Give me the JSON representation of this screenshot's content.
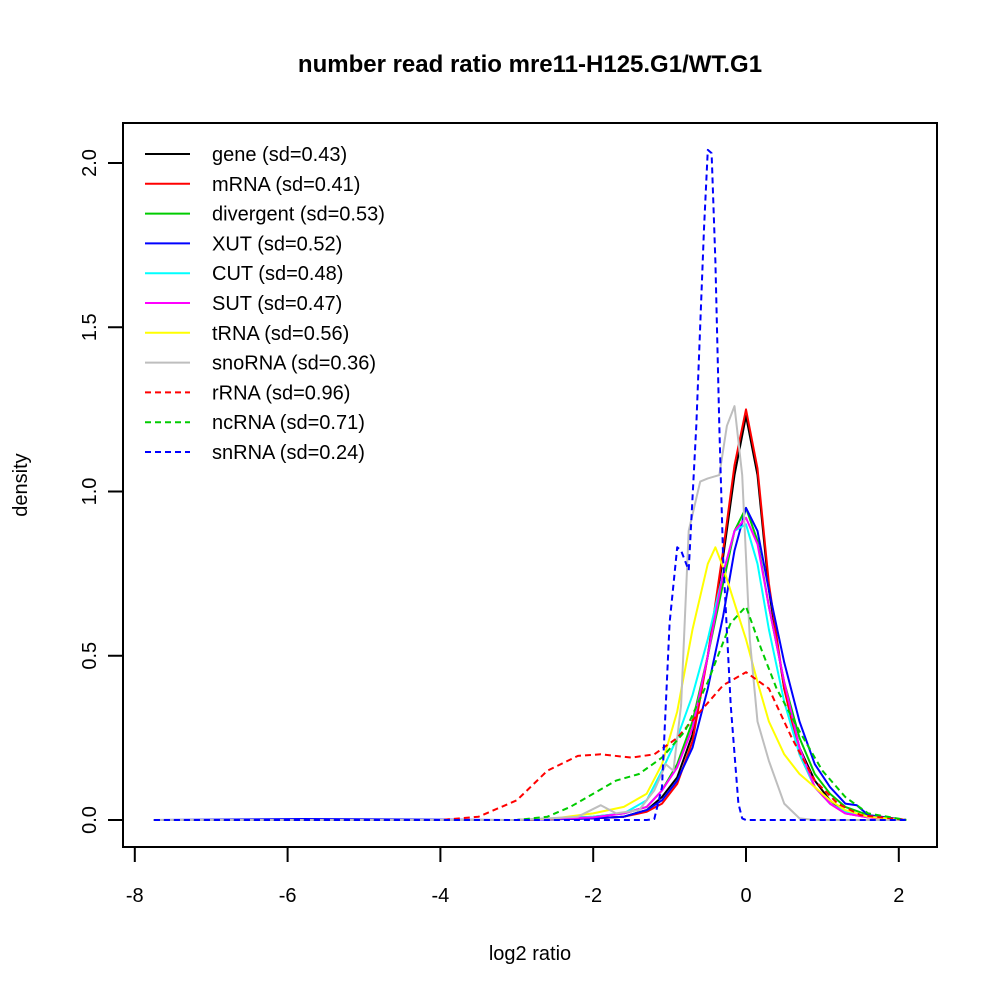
{
  "chart_data": {
    "type": "line",
    "title": "number read ratio mre11-H125.G1/WT.G1",
    "xlabel": "log2 ratio",
    "ylabel": "density",
    "xlim": [
      -8,
      2.2
    ],
    "ylim": [
      0,
      2.05
    ],
    "x_ticks": [
      -8,
      -6,
      -4,
      -2,
      0,
      2
    ],
    "x_tick_labels": [
      "-8",
      "-6",
      "-4",
      "-2",
      "0",
      "2"
    ],
    "y_ticks": [
      0,
      0.5,
      1.0,
      1.5,
      2.0
    ],
    "y_tick_labels": [
      "0.0",
      "0.5",
      "1.0",
      "1.5",
      "2.0"
    ],
    "grid": false,
    "legend_position": "top-left",
    "series": [
      {
        "name": "gene (sd=0.43)",
        "color": "#000000",
        "dash": "solid",
        "x": [
          -7.75,
          -3,
          -2,
          -1.6,
          -1.3,
          -1.1,
          -0.9,
          -0.7,
          -0.5,
          -0.3,
          -0.15,
          0,
          0.15,
          0.3,
          0.5,
          0.7,
          0.9,
          1.1,
          1.3,
          1.6,
          2.1
        ],
        "y": [
          0,
          0,
          0.005,
          0.01,
          0.03,
          0.07,
          0.13,
          0.26,
          0.5,
          0.8,
          1.05,
          1.23,
          1.05,
          0.7,
          0.4,
          0.22,
          0.12,
          0.06,
          0.025,
          0.01,
          0
        ]
      },
      {
        "name": "mRNA (sd=0.41)",
        "color": "#ff0000",
        "dash": "solid",
        "x": [
          -7.75,
          -3,
          -2,
          -1.6,
          -1.3,
          -1.1,
          -0.9,
          -0.7,
          -0.5,
          -0.3,
          -0.15,
          0,
          0.15,
          0.3,
          0.5,
          0.7,
          0.9,
          1.1,
          1.3,
          1.6,
          2.1
        ],
        "y": [
          0,
          0,
          0.005,
          0.01,
          0.025,
          0.05,
          0.11,
          0.24,
          0.5,
          0.82,
          1.08,
          1.25,
          1.07,
          0.72,
          0.4,
          0.2,
          0.1,
          0.05,
          0.02,
          0.008,
          0
        ]
      },
      {
        "name": "divergent (sd=0.53)",
        "color": "#00cc00",
        "dash": "solid",
        "x": [
          -7.75,
          -3,
          -2,
          -1.6,
          -1.3,
          -1.1,
          -0.9,
          -0.7,
          -0.5,
          -0.3,
          -0.15,
          0,
          0.15,
          0.3,
          0.5,
          0.7,
          0.9,
          1.1,
          1.3,
          1.6,
          2.1
        ],
        "y": [
          0,
          0,
          0.01,
          0.02,
          0.04,
          0.09,
          0.17,
          0.3,
          0.5,
          0.72,
          0.88,
          0.95,
          0.85,
          0.65,
          0.42,
          0.25,
          0.14,
          0.08,
          0.04,
          0.015,
          0
        ]
      },
      {
        "name": "XUT (sd=0.52)",
        "color": "#0000ff",
        "dash": "solid",
        "x": [
          -7.75,
          -5.8,
          -3,
          -2,
          -1.6,
          -1.3,
          -1.1,
          -0.9,
          -0.7,
          -0.5,
          -0.3,
          -0.15,
          0,
          0.15,
          0.3,
          0.5,
          0.7,
          0.9,
          1.1,
          1.3,
          1.45,
          1.6,
          2.1
        ],
        "y": [
          0,
          0.003,
          0,
          0.005,
          0.01,
          0.03,
          0.06,
          0.12,
          0.22,
          0.4,
          0.62,
          0.82,
          0.95,
          0.88,
          0.7,
          0.48,
          0.3,
          0.17,
          0.1,
          0.05,
          0.045,
          0.015,
          0
        ]
      },
      {
        "name": "CUT (sd=0.48)",
        "color": "#00ffff",
        "dash": "solid",
        "x": [
          -7.75,
          -3,
          -2,
          -1.6,
          -1.3,
          -1.1,
          -0.9,
          -0.7,
          -0.5,
          -0.3,
          -0.15,
          0,
          0.15,
          0.3,
          0.5,
          0.7,
          0.9,
          1.1,
          1.3,
          1.6,
          2.1
        ],
        "y": [
          0,
          0,
          0.01,
          0.02,
          0.06,
          0.15,
          0.25,
          0.38,
          0.55,
          0.75,
          0.88,
          0.9,
          0.78,
          0.58,
          0.36,
          0.2,
          0.1,
          0.05,
          0.025,
          0.01,
          0
        ]
      },
      {
        "name": "SUT (sd=0.47)",
        "color": "#ff00ff",
        "dash": "solid",
        "x": [
          -7.75,
          -3,
          -2,
          -1.6,
          -1.3,
          -1.1,
          -0.9,
          -0.7,
          -0.5,
          -0.3,
          -0.15,
          0,
          0.15,
          0.3,
          0.5,
          0.7,
          0.9,
          1.1,
          1.3,
          1.6,
          2.1
        ],
        "y": [
          0,
          0,
          0.008,
          0.02,
          0.04,
          0.09,
          0.16,
          0.28,
          0.5,
          0.75,
          0.88,
          0.92,
          0.84,
          0.65,
          0.42,
          0.22,
          0.1,
          0.05,
          0.02,
          0.008,
          0
        ]
      },
      {
        "name": "tRNA (sd=0.56)",
        "color": "#ffff00",
        "dash": "solid",
        "x": [
          -7.75,
          -3,
          -2.5,
          -2,
          -1.6,
          -1.3,
          -1.1,
          -0.9,
          -0.7,
          -0.5,
          -0.4,
          -0.3,
          -0.15,
          0,
          0.15,
          0.3,
          0.5,
          0.7,
          0.9,
          1.1,
          1.3,
          1.6,
          2.1
        ],
        "y": [
          0,
          0,
          0.005,
          0.02,
          0.04,
          0.08,
          0.17,
          0.33,
          0.58,
          0.78,
          0.83,
          0.77,
          0.66,
          0.55,
          0.42,
          0.3,
          0.2,
          0.14,
          0.1,
          0.06,
          0.03,
          0.01,
          0
        ]
      },
      {
        "name": "snoRNA (sd=0.36)",
        "color": "#bebebe",
        "dash": "solid",
        "x": [
          -7.75,
          -3,
          -2.2,
          -1.9,
          -1.7,
          -1.4,
          -1.2,
          -1.05,
          -0.95,
          -0.85,
          -0.75,
          -0.6,
          -0.5,
          -0.35,
          -0.25,
          -0.15,
          -0.05,
          0.05,
          0.15,
          0.3,
          0.5,
          0.7,
          0.9,
          2.1
        ],
        "y": [
          0,
          0,
          0.01,
          0.045,
          0.02,
          0.03,
          0.09,
          0.17,
          0.15,
          0.35,
          0.88,
          1.03,
          1.04,
          1.05,
          1.2,
          1.26,
          1.05,
          0.55,
          0.3,
          0.18,
          0.05,
          0.005,
          0,
          0
        ]
      },
      {
        "name": "rRNA (sd=0.96)",
        "color": "#ff0000",
        "dash": "dashed",
        "x": [
          -7.75,
          -4,
          -3.5,
          -3,
          -2.6,
          -2.2,
          -1.9,
          -1.5,
          -1.2,
          -0.9,
          -0.6,
          -0.3,
          0,
          0.3,
          0.6,
          0.9,
          1.2,
          1.5,
          2.1
        ],
        "y": [
          0,
          0,
          0.01,
          0.06,
          0.15,
          0.195,
          0.2,
          0.19,
          0.2,
          0.25,
          0.33,
          0.41,
          0.45,
          0.4,
          0.25,
          0.12,
          0.05,
          0.015,
          0
        ]
      },
      {
        "name": "ncRNA (sd=0.71)",
        "color": "#00cc00",
        "dash": "dashed",
        "x": [
          -7.75,
          -3,
          -2.6,
          -2.3,
          -2,
          -1.7,
          -1.4,
          -1.1,
          -0.8,
          -0.5,
          -0.2,
          0,
          0.2,
          0.4,
          0.7,
          1.0,
          1.3,
          1.6,
          2.1
        ],
        "y": [
          0,
          0,
          0.01,
          0.04,
          0.08,
          0.12,
          0.14,
          0.19,
          0.27,
          0.42,
          0.6,
          0.65,
          0.52,
          0.4,
          0.27,
          0.15,
          0.07,
          0.02,
          0
        ]
      },
      {
        "name": "snRNA (sd=0.24)",
        "color": "#0000ff",
        "dash": "dashed",
        "x": [
          -7.75,
          -1.3,
          -1.2,
          -1.1,
          -1.0,
          -0.9,
          -0.85,
          -0.75,
          -0.65,
          -0.55,
          -0.5,
          -0.45,
          -0.4,
          -0.35,
          -0.3,
          -0.2,
          -0.1,
          -0.05,
          0,
          0.2,
          2.1
        ],
        "y": [
          0,
          0,
          0.003,
          0.1,
          0.6,
          0.83,
          0.82,
          0.76,
          1.2,
          1.8,
          2.04,
          2.03,
          1.7,
          1.2,
          0.8,
          0.35,
          0.05,
          0.005,
          0,
          0,
          0
        ]
      }
    ]
  }
}
